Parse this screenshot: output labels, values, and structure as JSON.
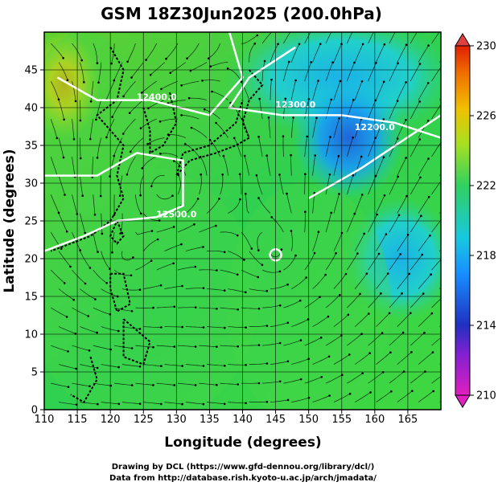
{
  "chart_data": {
    "type": "heatmap",
    "title": "GSM 18Z30Jun2025 (200.0hPa)",
    "xlabel": "Longitude (degrees)",
    "ylabel": "Latitude  (degrees)",
    "xlim": [
      110,
      170
    ],
    "ylim": [
      0,
      50
    ],
    "x_ticks": [
      110,
      115,
      120,
      125,
      130,
      135,
      140,
      145,
      150,
      155,
      160,
      165
    ],
    "y_ticks": [
      0,
      5,
      10,
      15,
      20,
      25,
      30,
      35,
      40,
      45
    ],
    "grid": true,
    "colorbar": {
      "ticks": [
        210,
        214,
        218,
        222,
        226,
        230
      ],
      "range": [
        210,
        230
      ],
      "colors": [
        "#e020c0",
        "#2030c0",
        "#1890ff",
        "#18c8e0",
        "#30d060",
        "#a8e020",
        "#f0c000",
        "#f07000",
        "#e02000"
      ]
    },
    "temperature_regions": [
      {
        "lon": [
          110,
          116
        ],
        "lat": [
          38,
          48
        ],
        "value": 227
      },
      {
        "lon": [
          110,
          122
        ],
        "lat": [
          28,
          48
        ],
        "value": 223
      },
      {
        "lon": [
          140,
          170
        ],
        "lat": [
          38,
          50
        ],
        "value": 219
      },
      {
        "lon": [
          150,
          162
        ],
        "lat": [
          30,
          42
        ],
        "value": 216
      },
      {
        "lon": [
          158,
          170
        ],
        "lat": [
          14,
          26
        ],
        "value": 218
      },
      {
        "lon": [
          110,
          140
        ],
        "lat": [
          0,
          30
        ],
        "value": 221
      },
      {
        "lon": [
          140,
          160
        ],
        "lat": [
          0,
          28
        ],
        "value": 221
      }
    ],
    "contours": [
      {
        "label": "12500.0",
        "lon": 130,
        "lat": 25.5
      },
      {
        "label": "12300.0",
        "lon": 148,
        "lat": 40
      },
      {
        "label": "12200.0",
        "lon": 160,
        "lat": 37
      },
      {
        "label": "12400.0",
        "lon": 127,
        "lat": 41
      }
    ],
    "circulations": [
      {
        "lon": 128,
        "lat": 29.5
      },
      {
        "lon": 145,
        "lat": 20.5
      },
      {
        "lon": 122,
        "lat": 20
      }
    ]
  },
  "credits": {
    "line1": "Drawing by DCL (https://www.gfd-dennou.org/library/dcl/)",
    "line2": "Data from http://database.rish.kyoto-u.ac.jp/arch/jmadata/"
  }
}
